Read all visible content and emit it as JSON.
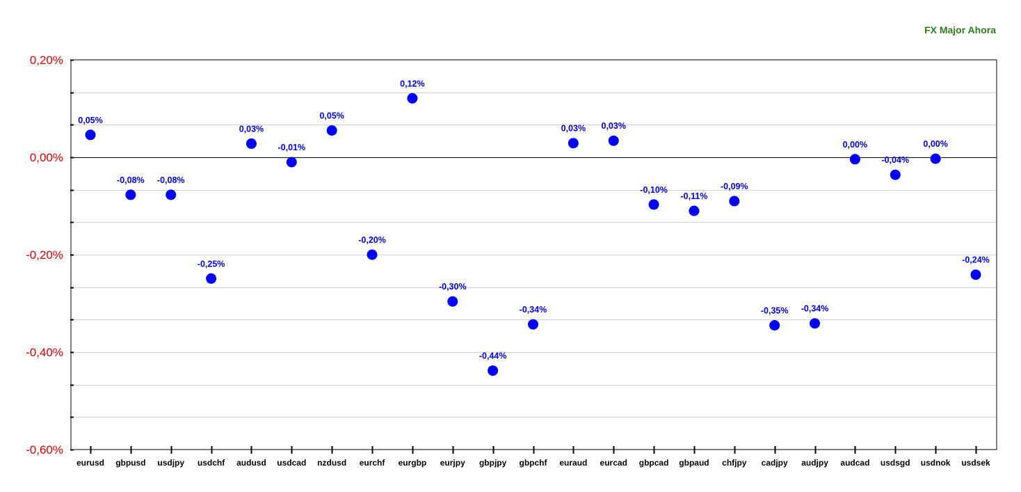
{
  "chart_data": {
    "type": "scatter",
    "title": "FX Major Ahora",
    "xlabel": "",
    "ylabel": "",
    "categories": [
      "eurusd",
      "gbpusd",
      "usdjpy",
      "usdchf",
      "audusd",
      "usdcad",
      "nzdusd",
      "eurchf",
      "eurgbp",
      "eurjpy",
      "gbpjpy",
      "gbpchf",
      "euraud",
      "eurcad",
      "gbpcad",
      "gbpaud",
      "chfjpy",
      "cadjpy",
      "audjpy",
      "audcad",
      "usdsgd",
      "usdnok",
      "usdsek"
    ],
    "values": [
      0.046,
      -0.077,
      -0.077,
      -0.249,
      0.028,
      -0.01,
      0.055,
      -0.2,
      0.121,
      -0.296,
      -0.438,
      -0.343,
      0.029,
      0.034,
      -0.097,
      -0.11,
      -0.09,
      -0.345,
      -0.341,
      -0.004,
      -0.036,
      -0.003,
      -0.241
    ],
    "data_labels": [
      "0,05%",
      "-0,08%",
      "-0,08%",
      "-0,25%",
      "0,03%",
      "-0,01%",
      "0,05%",
      "-0,20%",
      "0,12%",
      "-0,30%",
      "-0,44%",
      "-0,34%",
      "0,03%",
      "0,03%",
      "-0,10%",
      "-0,11%",
      "-0,09%",
      "-0,35%",
      "-0,34%",
      "0,00%",
      "-0,04%",
      "0,00%",
      "-0,24%"
    ],
    "y_ticks": [
      0.2,
      0.0,
      -0.2,
      -0.4,
      -0.6
    ],
    "y_tick_labels": [
      "0,20%",
      "0,00%",
      "-0,20%",
      "-0,40%",
      "-0,60%"
    ],
    "ylim": [
      -0.6,
      0.2
    ],
    "grid": true,
    "legend": "none",
    "colors": {
      "title": "#2e7d1a",
      "y_tick_labels": "#dd0000",
      "x_tick_labels": "#000000",
      "points": "#0000ee",
      "data_labels": "#0000dd",
      "grid": "#d3d3d3",
      "axis": "#000000"
    }
  }
}
